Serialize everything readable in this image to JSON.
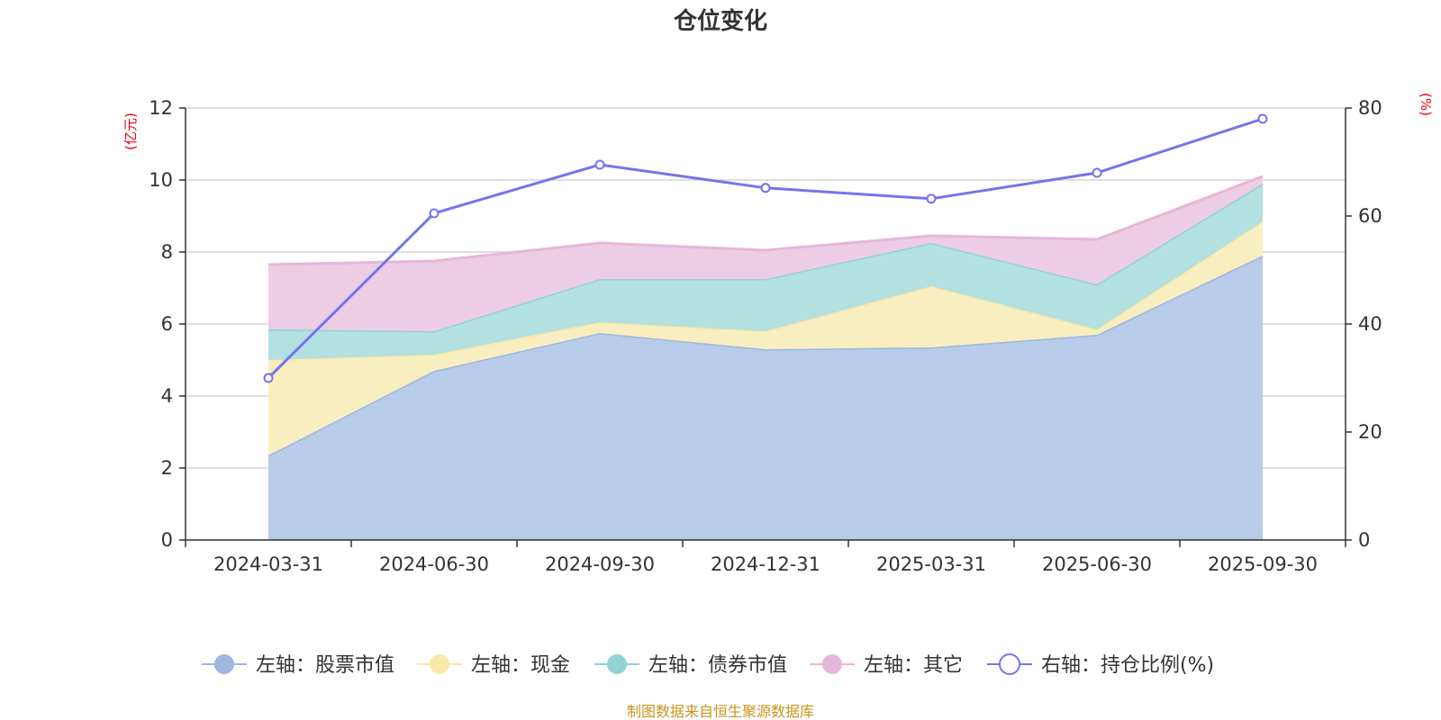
{
  "chart_data": {
    "type": "area",
    "title": "仓位变化",
    "categories": [
      "2024-03-31",
      "2024-06-30",
      "2024-09-30",
      "2024-12-31",
      "2025-03-31",
      "2025-06-30",
      "2025-09-30"
    ],
    "left_axis": {
      "unit": "(亿元)",
      "ylim": [
        0,
        12
      ],
      "ticks": [
        "0",
        "2",
        "4",
        "6",
        "8",
        "10",
        "12"
      ]
    },
    "right_axis": {
      "unit": "(%)",
      "ylim": [
        0,
        80
      ],
      "ticks": [
        "0",
        "20",
        "40",
        "60",
        "80"
      ]
    },
    "series": [
      {
        "name": "左轴：股票市值",
        "axis": "left",
        "kind": "stacked-area",
        "color": "#9cb7e0",
        "fill": "#b8cbe9",
        "values": [
          2.35,
          4.7,
          5.75,
          5.3,
          5.35,
          5.7,
          7.9
        ]
      },
      {
        "name": "左轴：现金",
        "axis": "left",
        "kind": "stacked-area",
        "color": "#f8e8a8",
        "fill": "#f9eec0",
        "values": [
          2.65,
          0.45,
          0.3,
          0.5,
          1.7,
          0.15,
          0.95
        ]
      },
      {
        "name": "左轴：债券市值",
        "axis": "left",
        "kind": "stacked-area",
        "color": "#93d3d3",
        "fill": "#b3e0e0",
        "values": [
          0.85,
          0.65,
          1.2,
          1.45,
          1.2,
          1.25,
          1.05
        ]
      },
      {
        "name": "左轴：其它",
        "axis": "left",
        "kind": "stacked-area",
        "color": "#e6b6d8",
        "fill": "#edcde4",
        "values": [
          1.8,
          1.95,
          1.0,
          0.8,
          0.2,
          1.25,
          0.2
        ]
      },
      {
        "name": "右轴：持仓比例(%)",
        "axis": "right",
        "kind": "line",
        "color": "#7474ec",
        "values": [
          30.0,
          60.5,
          69.5,
          65.2,
          63.2,
          68.0,
          78.0
        ]
      }
    ],
    "grid": true,
    "legend": "bottom"
  },
  "source_note": "制图数据来自恒生聚源数据库"
}
